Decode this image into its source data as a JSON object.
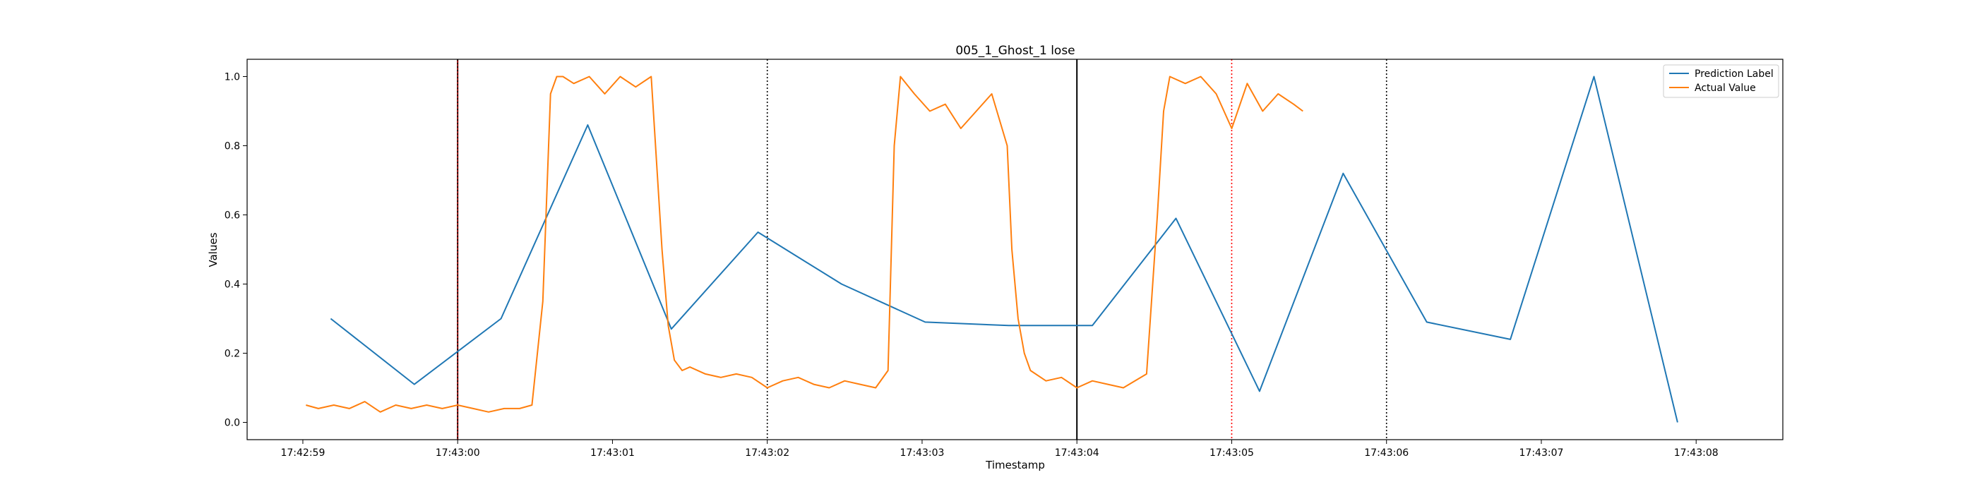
{
  "chart_data": {
    "type": "line",
    "title": "005_1_Ghost_1 lose",
    "xlabel": "Timestamp",
    "ylabel": "Values",
    "x_tick_labels": [
      "17:42:59",
      "17:43:00",
      "17:43:01",
      "17:43:02",
      "17:43:03",
      "17:43:04",
      "17:43:05",
      "17:43:06",
      "17:43:07",
      "17:43:08"
    ],
    "y_tick_labels": [
      "0.0",
      "0.2",
      "0.4",
      "0.6",
      "0.8",
      "1.0"
    ],
    "xlim": [
      -1.36,
      8.56
    ],
    "ylim": [
      -0.05,
      1.05
    ],
    "grid": false,
    "legend_position": "top-right",
    "vlines": [
      {
        "x": 0.0,
        "color": "#8b0000",
        "style": "solid"
      },
      {
        "x": 0.0,
        "color": "#000000",
        "style": "dotted"
      },
      {
        "x": 2.0,
        "color": "#000000",
        "style": "dotted"
      },
      {
        "x": 4.0,
        "color": "#000000",
        "style": "solid"
      },
      {
        "x": 5.0,
        "color": "#ff0000",
        "style": "dotted"
      },
      {
        "x": 6.0,
        "color": "#000000",
        "style": "dotted"
      }
    ],
    "series": [
      {
        "name": "Prediction Label",
        "color": "#1f77b4",
        "x": [
          -0.82,
          -0.28,
          0.28,
          0.84,
          1.38,
          1.94,
          2.48,
          3.02,
          3.56,
          4.1,
          4.64,
          5.18,
          5.72,
          6.26,
          6.8,
          7.34,
          7.88
        ],
        "y": [
          0.3,
          0.11,
          0.3,
          0.86,
          0.27,
          0.55,
          0.4,
          0.29,
          0.28,
          0.28,
          0.59,
          0.09,
          0.72,
          0.29,
          0.24,
          1.0,
          0.0
        ]
      },
      {
        "name": "Actual Value",
        "color": "#ff7f0e",
        "x": [
          -0.98,
          -0.9,
          -0.8,
          -0.7,
          -0.6,
          -0.5,
          -0.4,
          -0.3,
          -0.2,
          -0.1,
          0.0,
          0.1,
          0.2,
          0.3,
          0.4,
          0.48,
          0.55,
          0.6,
          0.64,
          0.68,
          0.75,
          0.85,
          0.95,
          1.05,
          1.15,
          1.25,
          1.32,
          1.36,
          1.4,
          1.45,
          1.5,
          1.6,
          1.7,
          1.8,
          1.9,
          2.0,
          2.1,
          2.2,
          2.3,
          2.4,
          2.5,
          2.6,
          2.7,
          2.78,
          2.82,
          2.86,
          2.95,
          3.05,
          3.15,
          3.25,
          3.35,
          3.45,
          3.55,
          3.58,
          3.62,
          3.66,
          3.7,
          3.8,
          3.9,
          4.0,
          4.1,
          4.2,
          4.3,
          4.45,
          4.52,
          4.56,
          4.6,
          4.7,
          4.8,
          4.9,
          5.0,
          5.1,
          5.2,
          5.3,
          5.4,
          5.46
        ],
        "y": [
          0.05,
          0.04,
          0.05,
          0.04,
          0.06,
          0.03,
          0.05,
          0.04,
          0.05,
          0.04,
          0.05,
          0.04,
          0.03,
          0.04,
          0.04,
          0.05,
          0.35,
          0.95,
          1.0,
          1.0,
          0.98,
          1.0,
          0.95,
          1.0,
          0.97,
          1.0,
          0.5,
          0.28,
          0.18,
          0.15,
          0.16,
          0.14,
          0.13,
          0.14,
          0.13,
          0.1,
          0.12,
          0.13,
          0.11,
          0.1,
          0.12,
          0.11,
          0.1,
          0.15,
          0.8,
          1.0,
          0.95,
          0.9,
          0.92,
          0.85,
          0.9,
          0.95,
          0.8,
          0.5,
          0.3,
          0.2,
          0.15,
          0.12,
          0.13,
          0.1,
          0.12,
          0.11,
          0.1,
          0.14,
          0.6,
          0.9,
          1.0,
          0.98,
          1.0,
          0.95,
          0.85,
          0.98,
          0.9,
          0.95,
          0.92,
          0.9
        ]
      }
    ]
  }
}
